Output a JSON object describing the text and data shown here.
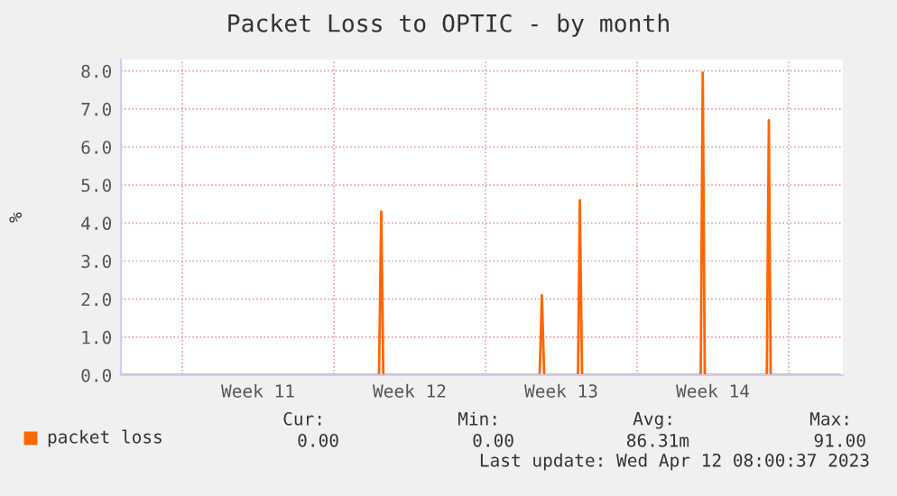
{
  "chart_data": {
    "type": "line",
    "title": "Packet Loss to OPTIC - by month",
    "ylabel": "%",
    "x": [
      "2023-03-10T04:00",
      "2023-03-22T02:00",
      "2023-03-22T04:30",
      "2023-03-22T06:45",
      "2023-03-29T12:00",
      "2023-03-29T14:30",
      "2023-03-29T17:00",
      "2023-03-31T06:30",
      "2023-03-31T08:30",
      "2023-03-31T11:00",
      "2023-04-05T22:30",
      "2023-04-06T00:45",
      "2023-04-06T03:00",
      "2023-04-08T23:45",
      "2023-04-09T02:00",
      "2023-04-09T04:00",
      "2023-04-12T08:00"
    ],
    "series": [
      {
        "name": "packet loss",
        "color": "#ff6600",
        "values": [
          0,
          0,
          4.3,
          0,
          0,
          2.1,
          0,
          0,
          4.6,
          0,
          0,
          7.95,
          0,
          0,
          6.7,
          0,
          0
        ]
      }
    ],
    "xlim": [
      "2023-03-10T04:00",
      "2023-04-12T12:00"
    ],
    "xticks": [
      {
        "value": "2023-03-13",
        "label": null
      },
      {
        "value": "2023-03-16T12:00",
        "label": "Week 11"
      },
      {
        "value": "2023-03-20",
        "label": null
      },
      {
        "value": "2023-03-23T12:00",
        "label": "Week 12"
      },
      {
        "value": "2023-03-27",
        "label": null
      },
      {
        "value": "2023-03-30T12:00",
        "label": "Week 13"
      },
      {
        "value": "2023-04-03",
        "label": null
      },
      {
        "value": "2023-04-06T12:00",
        "label": "Week 14"
      },
      {
        "value": "2023-04-10",
        "label": null
      }
    ],
    "ylim": [
      0,
      8.3
    ],
    "yticks": [
      {
        "value": 0,
        "label": "0.0"
      },
      {
        "value": 1,
        "label": "1.0"
      },
      {
        "value": 2,
        "label": "2.0"
      },
      {
        "value": 3,
        "label": "3.0"
      },
      {
        "value": 4,
        "label": "4.0"
      },
      {
        "value": 5,
        "label": "5.0"
      },
      {
        "value": 6,
        "label": "6.0"
      },
      {
        "value": 7,
        "label": "7.0"
      },
      {
        "value": 8,
        "label": "8.0"
      }
    ],
    "grid": true,
    "legend": "bottom left",
    "marker": "none",
    "line_style": "solid",
    "annotations": [
      "Cur:",
      "Min:",
      "Avg:",
      "Max:",
      "0.00",
      "0.00",
      "86.31m",
      "91.00",
      "Last update: Wed Apr 12 08:00:37 2023"
    ]
  }
}
